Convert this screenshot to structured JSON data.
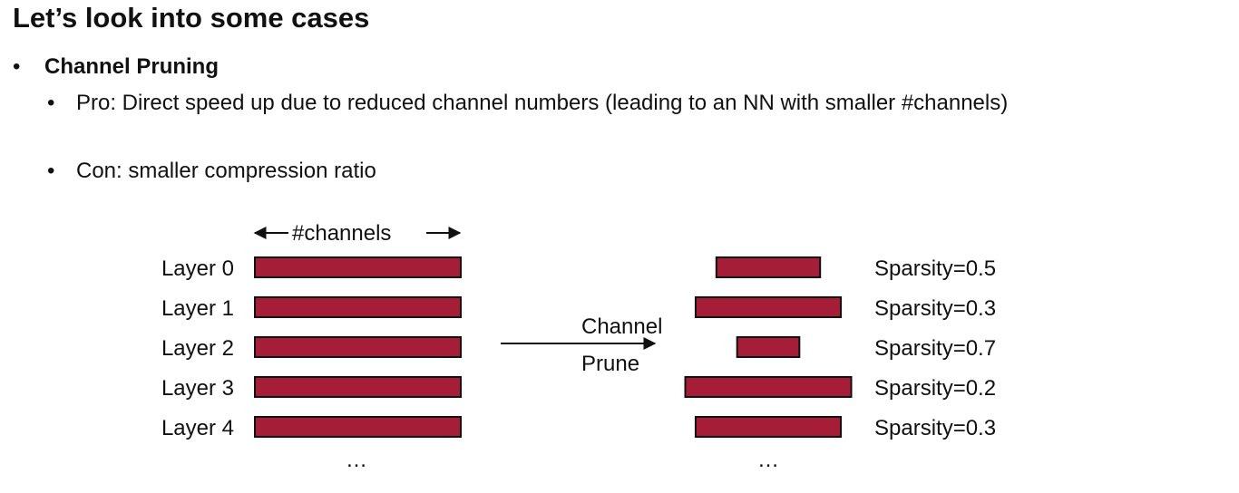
{
  "slide": {
    "title": "Let’s look into some cases",
    "bullets": [
      {
        "text": "Channel Pruning"
      },
      {
        "text": "Pro: Direct speed up due to reduced channel numbers (leading to an NN with smaller #channels)"
      },
      {
        "text": "Con: smaller compression ratio"
      }
    ]
  },
  "diagram": {
    "channels_label": "#channels",
    "arrow_label_1": "Channel",
    "arrow_label_2": "Prune",
    "ellipsis": "…",
    "bar_color": "#A51D36",
    "layers": [
      {
        "name": "Layer 0",
        "sparsity": 0.5,
        "sparsity_label": "Sparsity=0.5"
      },
      {
        "name": "Layer 1",
        "sparsity": 0.3,
        "sparsity_label": "Sparsity=0.3"
      },
      {
        "name": "Layer 2",
        "sparsity": 0.7,
        "sparsity_label": "Sparsity=0.7"
      },
      {
        "name": "Layer 3",
        "sparsity": 0.2,
        "sparsity_label": "Sparsity=0.2"
      },
      {
        "name": "Layer 4",
        "sparsity": 0.3,
        "sparsity_label": "Sparsity=0.3"
      }
    ]
  }
}
